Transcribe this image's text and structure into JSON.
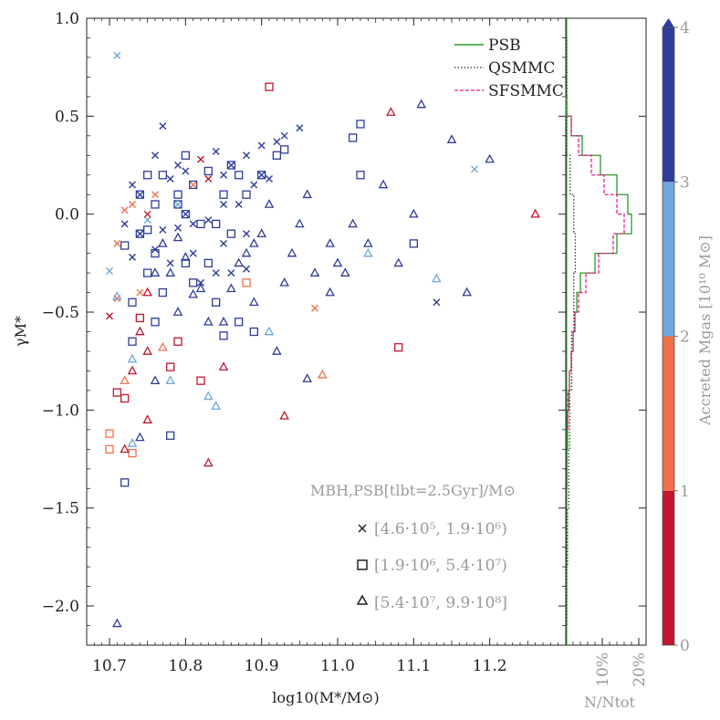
{
  "chart_data": {
    "type": "scatter",
    "xlabel": "log10(M*/M⊙)",
    "ylabel": "γM*",
    "xlim": [
      10.67,
      11.3
    ],
    "ylim": [
      -2.2,
      1.0
    ],
    "x_ticks": [
      "10.7",
      "10.8",
      "10.9",
      "11.0",
      "11.1",
      "11.2"
    ],
    "y_ticks": [
      "1.0",
      "0.5",
      "0.0",
      "−0.5",
      "−1.0",
      "−1.5",
      "−2.0"
    ],
    "marker_legend": {
      "title": "MBH,PSB[tlbt=2.5Gyr]/M⊙",
      "entries": [
        {
          "marker": "x",
          "label": "[4.6·10⁵, 1.9·10⁶)"
        },
        {
          "marker": "square",
          "label": "[1.9·10⁶, 5.4·10⁷)"
        },
        {
          "marker": "triangle",
          "label": "[5.4·10⁷, 9.9·10⁸]"
        }
      ]
    },
    "colorbar": {
      "label": "Accreted Mgas [10¹⁰ M⊙]",
      "ticks": [
        "0",
        "1",
        "2",
        "3",
        "4"
      ],
      "bins": [
        {
          "range": [
            0,
            1
          ],
          "color": "#c0172e"
        },
        {
          "range": [
            1,
            2
          ],
          "color": "#f07048"
        },
        {
          "range": [
            2,
            3
          ],
          "color": "#6ea8d8"
        },
        {
          "range": [
            3,
            4
          ],
          "color": "#2e3d99"
        }
      ]
    },
    "histogram_panel": {
      "xlabel": "N/Ntot",
      "x_ticks": [
        "10%",
        "20%"
      ],
      "series": [
        {
          "name": "PSB",
          "color": "#2a9a2a",
          "dash": "solid",
          "bins": [
            [
              0.5,
              0.6,
              0.1
            ],
            [
              0.4,
              0.5,
              1.5
            ],
            [
              0.3,
              0.4,
              4.5
            ],
            [
              0.2,
              0.3,
              9.5
            ],
            [
              0.1,
              0.2,
              14
            ],
            [
              0.0,
              0.1,
              17
            ],
            [
              -0.1,
              0.0,
              18
            ],
            [
              -0.2,
              -0.1,
              14
            ],
            [
              -0.3,
              -0.2,
              8
            ],
            [
              -0.4,
              -0.3,
              4
            ],
            [
              -0.5,
              -0.4,
              3
            ],
            [
              -0.6,
              -0.5,
              2.5
            ],
            [
              -0.7,
              -0.6,
              2
            ],
            [
              -0.8,
              -0.7,
              1.5
            ],
            [
              -0.9,
              -0.8,
              1
            ],
            [
              -1.0,
              -0.9,
              0.8
            ],
            [
              -1.2,
              -1.0,
              0.5
            ],
            [
              -1.4,
              -1.2,
              0.3
            ]
          ]
        },
        {
          "name": "QSMMC",
          "color": "#333333",
          "dash": "dotted",
          "bins": [
            [
              0.3,
              0.9,
              0.3
            ],
            [
              0.1,
              0.3,
              1.2
            ],
            [
              -0.1,
              0.1,
              2.2
            ],
            [
              -0.3,
              -0.1,
              2.6
            ],
            [
              -0.6,
              -0.3,
              2.2
            ],
            [
              -0.9,
              -0.6,
              1.6
            ],
            [
              -1.2,
              -0.9,
              1.1
            ],
            [
              -1.5,
              -1.2,
              0.8
            ],
            [
              -1.8,
              -1.5,
              0.5
            ],
            [
              -2.1,
              -1.8,
              0.3
            ]
          ]
        },
        {
          "name": "SFSMMC",
          "color": "#ee1c8c",
          "dash": "dashed",
          "bins": [
            [
              0.5,
              0.6,
              0.3
            ],
            [
              0.4,
              0.5,
              1.5
            ],
            [
              0.3,
              0.4,
              3.5
            ],
            [
              0.2,
              0.3,
              7
            ],
            [
              0.1,
              0.2,
              10.5
            ],
            [
              0.0,
              0.1,
              14
            ],
            [
              -0.1,
              0.0,
              16
            ],
            [
              -0.2,
              -0.1,
              13
            ],
            [
              -0.3,
              -0.2,
              9
            ],
            [
              -0.4,
              -0.3,
              5.5
            ],
            [
              -0.5,
              -0.4,
              3.5
            ],
            [
              -0.6,
              -0.5,
              2.5
            ],
            [
              -0.7,
              -0.6,
              2
            ],
            [
              -0.8,
              -0.7,
              1.5
            ],
            [
              -0.9,
              -0.8,
              1
            ],
            [
              -1.1,
              -0.9,
              0.6
            ]
          ]
        }
      ]
    },
    "series": [
      {
        "name": "x",
        "marker": "x",
        "points": [
          [
            10.71,
            0.81,
            3
          ],
          [
            10.7,
            -0.52,
            1
          ],
          [
            10.71,
            -0.43,
            2
          ],
          [
            10.7,
            -0.29,
            3
          ],
          [
            10.71,
            -0.15,
            2
          ],
          [
            10.72,
            -0.05,
            4
          ],
          [
            10.72,
            0.02,
            2
          ],
          [
            10.73,
            -0.22,
            4
          ],
          [
            10.73,
            0.05,
            2
          ],
          [
            10.74,
            -0.1,
            4
          ],
          [
            10.74,
            0.1,
            4
          ],
          [
            10.75,
            -0.03,
            3
          ],
          [
            10.75,
            0.0,
            1
          ],
          [
            10.76,
            -0.18,
            4
          ],
          [
            10.76,
            0.1,
            2
          ],
          [
            10.77,
            -0.08,
            4
          ],
          [
            10.77,
            0.45,
            4
          ],
          [
            10.78,
            -0.25,
            4
          ],
          [
            10.78,
            0.18,
            4
          ],
          [
            10.79,
            0.05,
            3
          ],
          [
            10.79,
            -0.07,
            4
          ],
          [
            10.8,
            0.22,
            4
          ],
          [
            10.8,
            0.0,
            4
          ],
          [
            10.81,
            -0.05,
            4
          ],
          [
            10.81,
            0.15,
            2
          ],
          [
            10.82,
            -0.35,
            4
          ],
          [
            10.82,
            0.28,
            1
          ],
          [
            10.83,
            -0.03,
            4
          ],
          [
            10.84,
            0.32,
            4
          ],
          [
            10.84,
            -0.3,
            4
          ],
          [
            10.85,
            0.2,
            4
          ],
          [
            10.85,
            -0.15,
            4
          ],
          [
            10.86,
            0.25,
            4
          ],
          [
            10.86,
            -0.3,
            4
          ],
          [
            10.87,
            0.05,
            4
          ],
          [
            10.88,
            0.3,
            4
          ],
          [
            10.88,
            -0.28,
            4
          ],
          [
            10.89,
            0.15,
            4
          ],
          [
            10.9,
            0.35,
            4
          ],
          [
            10.91,
            0.18,
            4
          ],
          [
            10.92,
            0.37,
            4
          ],
          [
            10.93,
            0.4,
            4
          ],
          [
            10.95,
            0.44,
            4
          ],
          [
            10.97,
            -0.48,
            2
          ],
          [
            11.13,
            -0.45,
            4
          ],
          [
            11.18,
            0.23,
            3
          ],
          [
            10.76,
            0.3,
            4
          ],
          [
            10.83,
            0.18,
            1
          ],
          [
            10.79,
            0.25,
            4
          ],
          [
            10.73,
            0.15,
            4
          ],
          [
            10.88,
            -0.1,
            4
          ],
          [
            10.9,
            0.2,
            4
          ],
          [
            10.74,
            -0.4,
            2
          ],
          [
            10.81,
            -0.2,
            4
          ],
          [
            10.85,
            0.05,
            4
          ]
        ]
      },
      {
        "name": "square",
        "marker": "square",
        "points": [
          [
            10.7,
            -1.12,
            2
          ],
          [
            10.7,
            -1.2,
            2
          ],
          [
            10.71,
            -0.91,
            1
          ],
          [
            10.72,
            -1.37,
            4
          ],
          [
            10.72,
            -0.94,
            1
          ],
          [
            10.72,
            -0.16,
            4
          ],
          [
            10.73,
            -0.45,
            4
          ],
          [
            10.73,
            -0.65,
            4
          ],
          [
            10.73,
            -1.22,
            2
          ],
          [
            10.74,
            -0.53,
            1
          ],
          [
            10.74,
            -0.1,
            4
          ],
          [
            10.74,
            0.1,
            4
          ],
          [
            10.75,
            -0.3,
            4
          ],
          [
            10.75,
            -0.08,
            4
          ],
          [
            10.76,
            -0.2,
            4
          ],
          [
            10.76,
            0.05,
            4
          ],
          [
            10.76,
            -0.55,
            4
          ],
          [
            10.77,
            -0.4,
            4
          ],
          [
            10.77,
            0.2,
            4
          ],
          [
            10.78,
            -1.13,
            4
          ],
          [
            10.78,
            -0.78,
            1
          ],
          [
            10.79,
            -0.65,
            1
          ],
          [
            10.79,
            0.1,
            4
          ],
          [
            10.8,
            -0.25,
            4
          ],
          [
            10.8,
            0.0,
            4
          ],
          [
            10.81,
            0.15,
            4
          ],
          [
            10.81,
            -0.35,
            4
          ],
          [
            10.82,
            -0.85,
            1
          ],
          [
            10.82,
            -0.05,
            4
          ],
          [
            10.83,
            0.22,
            4
          ],
          [
            10.83,
            -0.25,
            4
          ],
          [
            10.84,
            -0.45,
            4
          ],
          [
            10.85,
            -0.62,
            4
          ],
          [
            10.85,
            0.1,
            4
          ],
          [
            10.86,
            -0.1,
            4
          ],
          [
            10.86,
            0.25,
            4
          ],
          [
            10.87,
            -0.55,
            4
          ],
          [
            10.87,
            0.2,
            4
          ],
          [
            10.88,
            -0.35,
            2
          ],
          [
            10.89,
            -0.6,
            4
          ],
          [
            10.9,
            0.2,
            4
          ],
          [
            10.91,
            0.65,
            1
          ],
          [
            10.92,
            0.3,
            4
          ],
          [
            10.93,
            0.33,
            4
          ],
          [
            11.02,
            0.39,
            4
          ],
          [
            11.03,
            0.46,
            4
          ],
          [
            11.03,
            0.2,
            4
          ],
          [
            11.08,
            -0.68,
            1
          ],
          [
            11.1,
            -0.15,
            4
          ],
          [
            10.79,
            0.05,
            4
          ],
          [
            10.84,
            -0.05,
            4
          ],
          [
            10.88,
            0.1,
            4
          ],
          [
            10.75,
            0.2,
            4
          ],
          [
            10.8,
            0.3,
            4
          ]
        ]
      },
      {
        "name": "triangle",
        "marker": "triangle",
        "points": [
          [
            10.71,
            -2.09,
            4
          ],
          [
            10.71,
            -0.42,
            3
          ],
          [
            10.72,
            -0.85,
            2
          ],
          [
            10.72,
            -1.2,
            1
          ],
          [
            10.73,
            -0.8,
            1
          ],
          [
            10.73,
            -0.74,
            3
          ],
          [
            10.73,
            -1.17,
            3
          ],
          [
            10.74,
            -1.14,
            4
          ],
          [
            10.74,
            -0.6,
            1
          ],
          [
            10.75,
            -1.05,
            1
          ],
          [
            10.75,
            -0.7,
            1
          ],
          [
            10.75,
            -0.4,
            1
          ],
          [
            10.76,
            -0.85,
            4
          ],
          [
            10.76,
            -0.3,
            4
          ],
          [
            10.77,
            -0.68,
            2
          ],
          [
            10.77,
            -0.15,
            4
          ],
          [
            10.78,
            -0.85,
            3
          ],
          [
            10.78,
            -0.3,
            4
          ],
          [
            10.79,
            -0.12,
            4
          ],
          [
            10.79,
            -0.5,
            4
          ],
          [
            10.8,
            -0.22,
            4
          ],
          [
            10.81,
            -0.41,
            4
          ],
          [
            10.82,
            -0.38,
            4
          ],
          [
            10.83,
            -0.55,
            4
          ],
          [
            10.83,
            -0.93,
            3
          ],
          [
            10.83,
            -1.27,
            1
          ],
          [
            10.84,
            -0.98,
            3
          ],
          [
            10.85,
            -0.78,
            1
          ],
          [
            10.85,
            -0.55,
            4
          ],
          [
            10.86,
            -0.38,
            4
          ],
          [
            10.87,
            -0.25,
            4
          ],
          [
            10.88,
            -0.2,
            4
          ],
          [
            10.89,
            -0.15,
            4
          ],
          [
            10.9,
            -0.1,
            4
          ],
          [
            10.91,
            0.05,
            4
          ],
          [
            10.92,
            -0.7,
            4
          ],
          [
            10.93,
            -1.03,
            1
          ],
          [
            10.94,
            -0.2,
            4
          ],
          [
            10.95,
            -0.05,
            4
          ],
          [
            10.96,
            -0.84,
            4
          ],
          [
            10.97,
            -0.3,
            4
          ],
          [
            10.98,
            -0.82,
            2
          ],
          [
            10.99,
            -0.15,
            4
          ],
          [
            11.0,
            -0.25,
            4
          ],
          [
            11.02,
            -0.05,
            4
          ],
          [
            11.04,
            -0.15,
            4
          ],
          [
            11.06,
            0.15,
            4
          ],
          [
            11.07,
            0.52,
            1
          ],
          [
            11.08,
            -0.25,
            4
          ],
          [
            11.1,
            0.0,
            4
          ],
          [
            11.11,
            0.56,
            4
          ],
          [
            11.13,
            -0.33,
            3
          ],
          [
            11.15,
            0.38,
            4
          ],
          [
            11.17,
            -0.4,
            4
          ],
          [
            11.2,
            0.28,
            4
          ],
          [
            11.26,
            0.0,
            1
          ],
          [
            10.96,
            0.1,
            4
          ],
          [
            11.04,
            -0.2,
            3
          ],
          [
            10.99,
            -0.4,
            4
          ],
          [
            11.01,
            -0.3,
            4
          ],
          [
            10.93,
            -0.35,
            4
          ],
          [
            10.89,
            -0.45,
            4
          ],
          [
            10.91,
            -0.6,
            3
          ]
        ]
      }
    ]
  }
}
